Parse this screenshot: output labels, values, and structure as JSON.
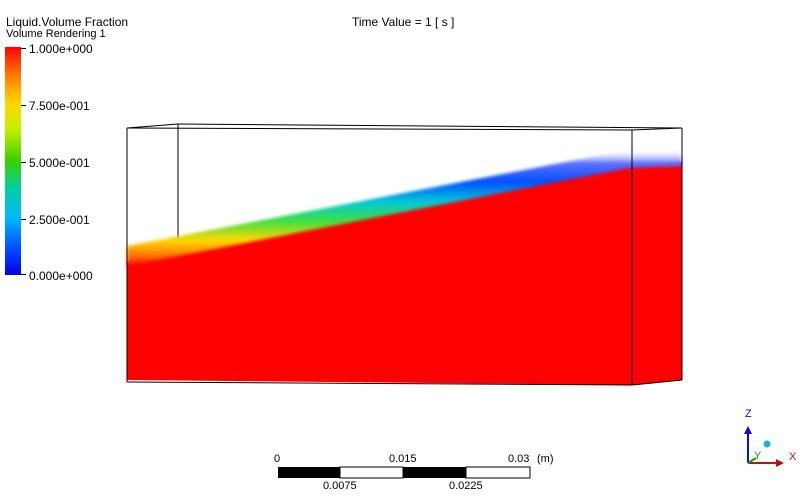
{
  "legend": {
    "variable": "Liquid.Volume Fraction",
    "rendering": "Volume Rendering 1",
    "ticks": [
      "1.000e+000",
      "7.500e-001",
      "5.000e-001",
      "2.500e-001",
      "0.000e+000"
    ],
    "colors": {
      "max": "#ff0000",
      "mid": "#39d000",
      "min": "#0000e8"
    }
  },
  "time": {
    "label": "Time Value = 1 [ s ]"
  },
  "scale_bar": {
    "top_labels": [
      "0",
      "0.015",
      "0.03"
    ],
    "unit": "(m)",
    "bottom_labels": [
      "0.0075",
      "0.0225"
    ]
  },
  "triad": {
    "z": "Z",
    "y": "Y",
    "x": "X"
  }
}
